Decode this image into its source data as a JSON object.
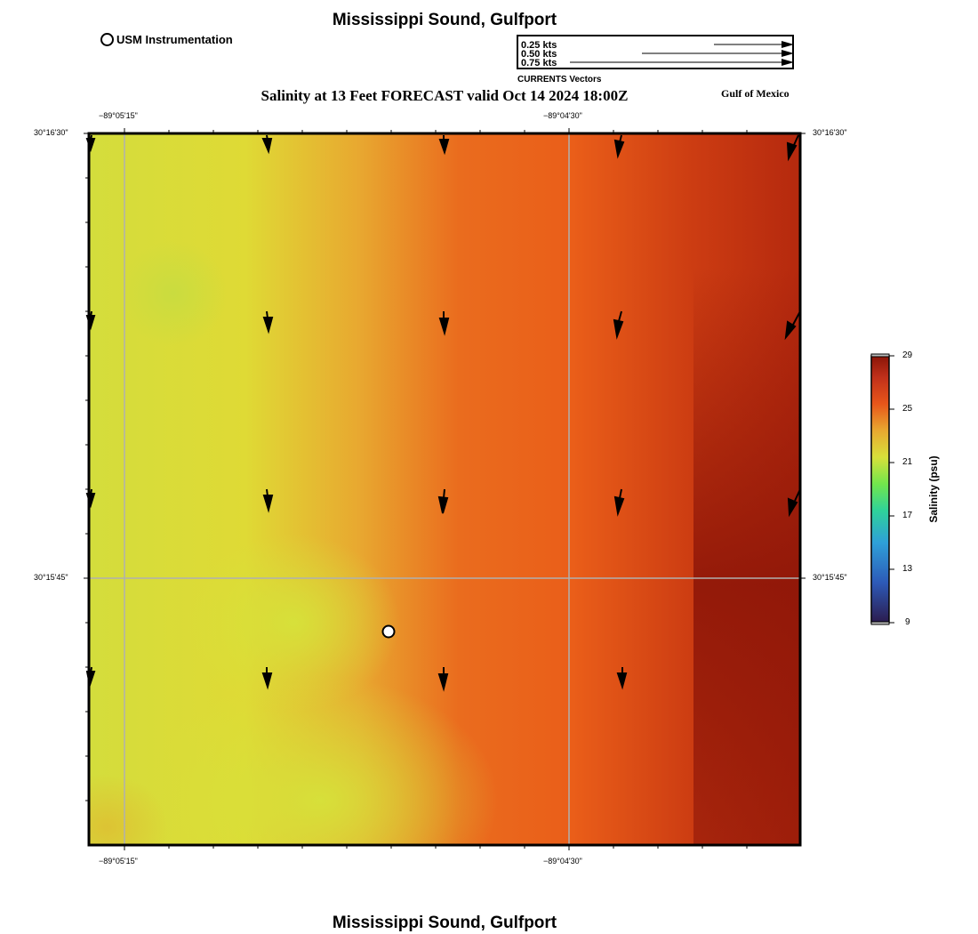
{
  "header": {
    "title": "Mississippi Sound, Gulfport",
    "subtitle": "Salinity at 13 Feet FORECAST valid Oct 14 2024 18:00Z",
    "region_label": "Gulf of Mexico"
  },
  "footer": {
    "title": "Mississippi Sound, Gulfport"
  },
  "legend": {
    "station_label": "USM Instrumentation",
    "vector_scale": [
      "0.25 kts",
      "0.50 kts",
      "0.75 kts"
    ],
    "vector_caption": "CURRENTS Vectors"
  },
  "axes": {
    "lon_ticks": [
      "−89°05'15\"",
      "−89°04'30\""
    ],
    "lat_ticks": [
      "30°16'30\"",
      "30°15'45\""
    ]
  },
  "colorbar": {
    "label": "Salinity (psu)",
    "ticks": [
      "29",
      "25",
      "21",
      "17",
      "13",
      "9"
    ],
    "range": [
      9,
      29
    ],
    "colors": [
      "#2b1b4d",
      "#2d6fd2",
      "#2fc8a8",
      "#5ee65a",
      "#d9e03a",
      "#e8a830",
      "#e8561a",
      "#c0301a",
      "#8a1508"
    ]
  },
  "map": {
    "station_marker": "usm-instrumentation-station",
    "vector_color": "#000000",
    "grid_color": "#b0b0b0"
  }
}
